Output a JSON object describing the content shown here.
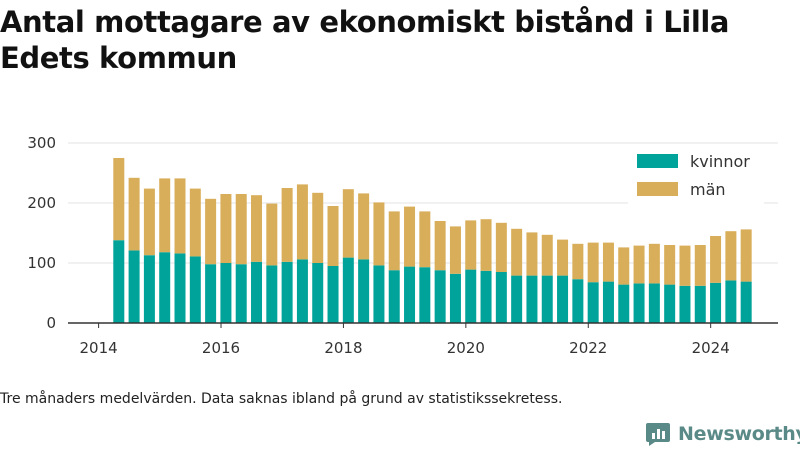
{
  "title": "Antal mottagare av ekonomiskt bistånd i Lilla Edets kommun",
  "note": "Tre månaders medelvärden. Data saknas ibland på grund av statistikssekretess.",
  "brand": "Newsworthy",
  "colors": {
    "kvinnor": "#00a39a",
    "man": "#d9ae5a",
    "grid": "#e3e3e3",
    "axis": "#333333",
    "brand": "#5a8a87"
  },
  "chart_data": {
    "type": "bar",
    "stacked": true,
    "x_ticks": [
      "2014",
      "2016",
      "2018",
      "2020",
      "2022",
      "2024"
    ],
    "y_ticks": [
      "0",
      "100",
      "200",
      "300"
    ],
    "ylim": [
      0,
      310
    ],
    "x_range": [
      2013.5,
      2025.1
    ],
    "grid": true,
    "legend_position": "top-right",
    "x": [
      2014.33,
      2014.58,
      2014.83,
      2015.08,
      2015.33,
      2015.58,
      2015.83,
      2016.08,
      2016.33,
      2016.58,
      2016.83,
      2017.08,
      2017.33,
      2017.58,
      2017.83,
      2018.08,
      2018.33,
      2018.58,
      2018.83,
      2019.08,
      2019.33,
      2019.58,
      2019.83,
      2020.08,
      2020.33,
      2020.58,
      2020.83,
      2021.08,
      2021.33,
      2021.58,
      2021.83,
      2022.08,
      2022.33,
      2022.58,
      2022.83,
      2023.08,
      2023.33,
      2023.58,
      2023.83,
      2024.08,
      2024.33,
      2024.58
    ],
    "series": [
      {
        "name": "kvinnor",
        "values": [
          138,
          121,
          113,
          118,
          116,
          111,
          98,
          100,
          98,
          102,
          96,
          102,
          106,
          100,
          95,
          109,
          106,
          96,
          88,
          94,
          93,
          88,
          82,
          89,
          87,
          85,
          79,
          79,
          79,
          79,
          73,
          68,
          69,
          64,
          66,
          66,
          64,
          62,
          62,
          67,
          71,
          69
        ]
      },
      {
        "name": "män",
        "values": [
          137,
          121,
          111,
          123,
          125,
          113,
          109,
          115,
          117,
          111,
          103,
          123,
          125,
          117,
          100,
          114,
          110,
          105,
          98,
          100,
          93,
          82,
          79,
          82,
          86,
          82,
          78,
          72,
          68,
          60,
          59,
          66,
          65,
          62,
          63,
          66,
          66,
          67,
          68,
          78,
          82,
          87
        ]
      }
    ]
  }
}
